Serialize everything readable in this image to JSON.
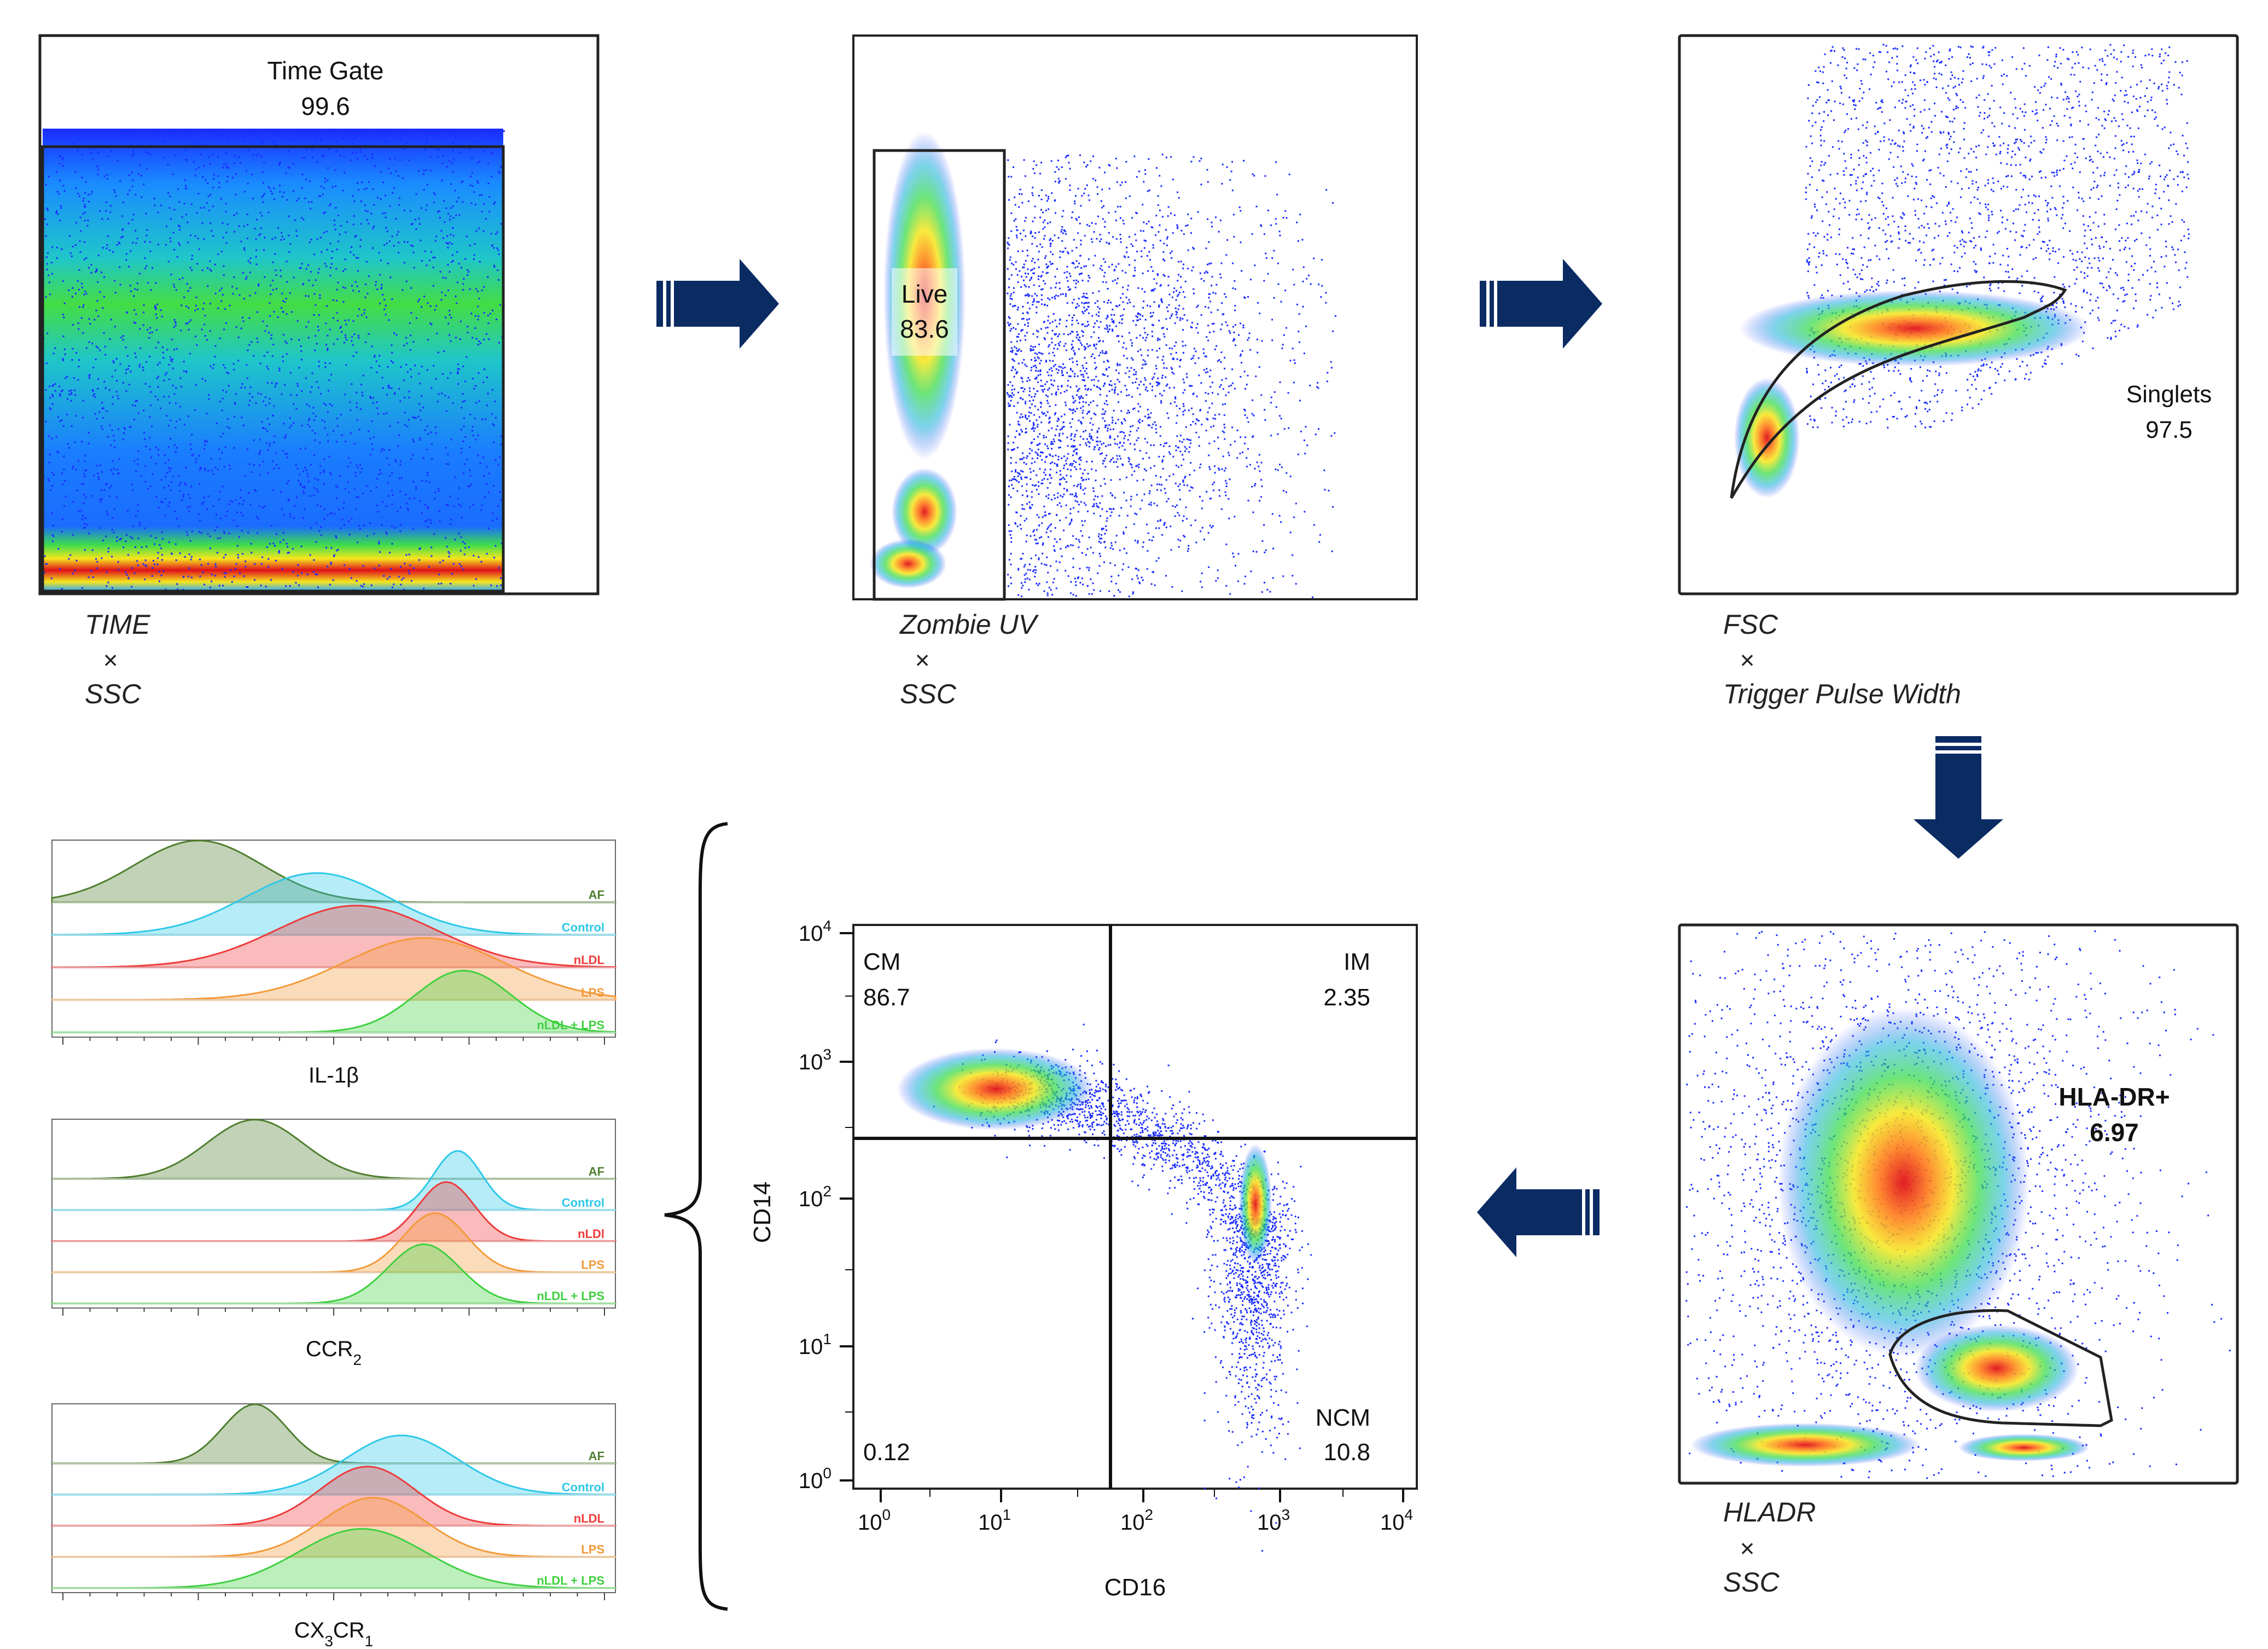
{
  "colors": {
    "arrow": "#0b2b63",
    "af": "#4f7f2f",
    "control": "#2ec8e8",
    "nldl": "#ee3b3b",
    "lps": "#f39a3a",
    "nldl_lps": "#3fd03f",
    "dot": "#1a2cff"
  },
  "panel_time": {
    "gate_name": "Time Gate",
    "gate_value": "99.6",
    "x_label": "TIME",
    "times": "×",
    "y_label": "SSC"
  },
  "panel_live": {
    "gate_name": "Live",
    "gate_value": "83.6",
    "x_label": "Zombie UV",
    "times": "×",
    "y_label": "SSC"
  },
  "panel_singlets": {
    "gate_name": "Singlets",
    "gate_value": "97.5",
    "x_label": "FSC",
    "times": "×",
    "y_label": "Trigger Pulse Width"
  },
  "panel_hladr": {
    "gate_name": "HLA-DR+",
    "gate_value": "6.97",
    "x_label": "HLADR",
    "times": "×",
    "y_label": "SSC"
  },
  "panel_quadrant": {
    "x_label": "CD16",
    "y_label": "CD14",
    "x_ticks": [
      "10",
      "10",
      "10",
      "10",
      "10"
    ],
    "x_tick_exps": [
      "0",
      "1",
      "2",
      "3",
      "4"
    ],
    "y_ticks": [
      "10",
      "10",
      "10",
      "10",
      "10"
    ],
    "y_tick_exps": [
      "0",
      "1",
      "2",
      "3",
      "4"
    ],
    "quadrants": {
      "cm_name": "CM",
      "cm_value": "86.7",
      "im_name": "IM",
      "im_value": "2.35",
      "ncm_name": "NCM",
      "ncm_value": "10.8",
      "neg_value": "0.12"
    }
  },
  "histograms": [
    {
      "marker": "IL-1β",
      "legend": [
        "AF",
        "Control",
        "nLDL",
        "LPS",
        "nLDL + LPS"
      ]
    },
    {
      "marker_base": "CCR",
      "marker_sub": "2",
      "legend": [
        "AF",
        "Control",
        "nLDl",
        "LPS",
        "nLDL + LPS"
      ]
    },
    {
      "marker_base": "CX",
      "marker_sub1": "3",
      "marker_mid": "CR",
      "marker_sub2": "1",
      "legend": [
        "AF",
        "Control",
        "nLDL",
        "LPS",
        "nLDL + LPS"
      ]
    }
  ]
}
